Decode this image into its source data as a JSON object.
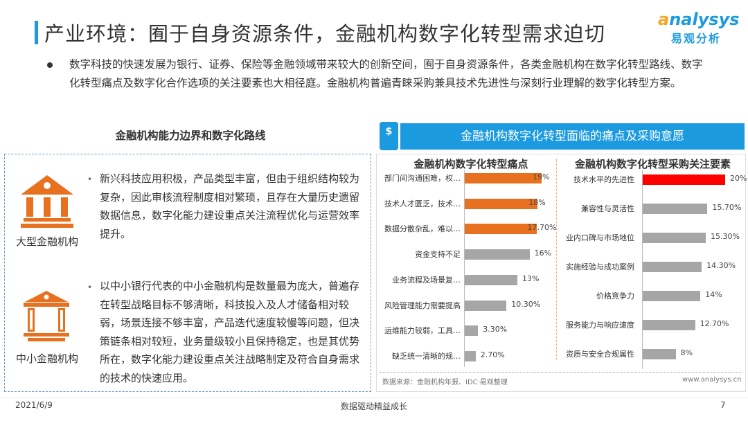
{
  "header": {
    "title": "产业环境：囿于自身资源条件，金融机构数字化转型需求迫切",
    "logo_en": "analysys",
    "logo_cn": "易观分析"
  },
  "intro": "数字科技的快速发展为银行、证券、保险等金融领域带来较大的创新空间，囿于自身资源条件，各类金融机构在数字化转型路线、数字化转型痛点及数字化合作选项的关注要素也大相径庭。金融机构普遍青睐采购兼具技术先进性与深刻行业理解的数字化转型方案。",
  "left": {
    "heading": "金融机构能力边界和数字化路线",
    "items": [
      {
        "label": "大型金融机构",
        "icon": "bank-building-icon",
        "text": "新兴科技应用积极，产品类型丰富，但由于组织结构较为复杂，因此审核流程制度相对繁琐，且存在大量历史遗留数据信息，数字化能力建设重点关注流程优化与运营效率提升。"
      },
      {
        "label": "中小金融机构",
        "icon": "small-bank-icon",
        "text": "以中小银行代表的中小金融机构是数量最为庞大，普遍存在转型战略目标不够清晰，科技投入及人才储备相对较弱，场景连接不够丰富，产品迭代速度较慢等问题，但决策链条相对较短，业务量级较小且保持稳定，也是其优势所在，数字化能力建设重点关注战略制定及符合自身需求的技术的快速应用。"
      }
    ]
  },
  "right": {
    "heading": "金融机构数字化转型面临的痛点及采购意愿",
    "icon": "dollar-phone-icon",
    "source": "数据来源：金融机构年报、IDC·易观整理",
    "url": "www.analysys.cn"
  },
  "chart_data": [
    {
      "type": "bar",
      "orientation": "horizontal",
      "title": "金融机构数字化转型痛点",
      "categories": [
        "部门间沟通困难，权…",
        "技术人才匮乏，技术…",
        "数据分散杂乱，难以…",
        "资金支持不足",
        "业务流程及场景复…",
        "风险管理能力需要提高",
        "运维能力较弱，工具…",
        "缺乏统一清晰的规…"
      ],
      "values": [
        19,
        18,
        17.7,
        16,
        13,
        10.3,
        3.3,
        2.7
      ],
      "data_labels": [
        "19%",
        "18%",
        "17.70%",
        "16%",
        "13%",
        "10.30%",
        "3.30%",
        "2.70%"
      ],
      "colors": [
        "#e8711f",
        "#e8711f",
        "#e8711f",
        "#a6a6a6",
        "#a6a6a6",
        "#a6a6a6",
        "#a6a6a6",
        "#a6a6a6"
      ],
      "xlim": [
        0,
        20
      ],
      "grid": false
    },
    {
      "type": "bar",
      "orientation": "horizontal",
      "title": "金融机构数字化转型采购关注要素",
      "categories": [
        "技术水平的先进性",
        "兼容性与灵活性",
        "业内口碑与市场地位",
        "实施经验与成功案例",
        "价格竞争力",
        "服务能力与响应速度",
        "资质与安全合规属性"
      ],
      "values": [
        20,
        15.7,
        15.3,
        14.3,
        14,
        12.7,
        8
      ],
      "data_labels": [
        "20%",
        "15.70%",
        "15.30%",
        "14.30%",
        "14%",
        "12.70%",
        "8%"
      ],
      "colors": [
        "#ff0000",
        "#a6a6a6",
        "#a6a6a6",
        "#a6a6a6",
        "#a6a6a6",
        "#a6a6a6",
        "#a6a6a6"
      ],
      "xlim": [
        0,
        20
      ],
      "grid": false
    }
  ],
  "footer": {
    "date": "2021/6/9",
    "slogan": "数据驱动精益成长",
    "page": "7"
  }
}
